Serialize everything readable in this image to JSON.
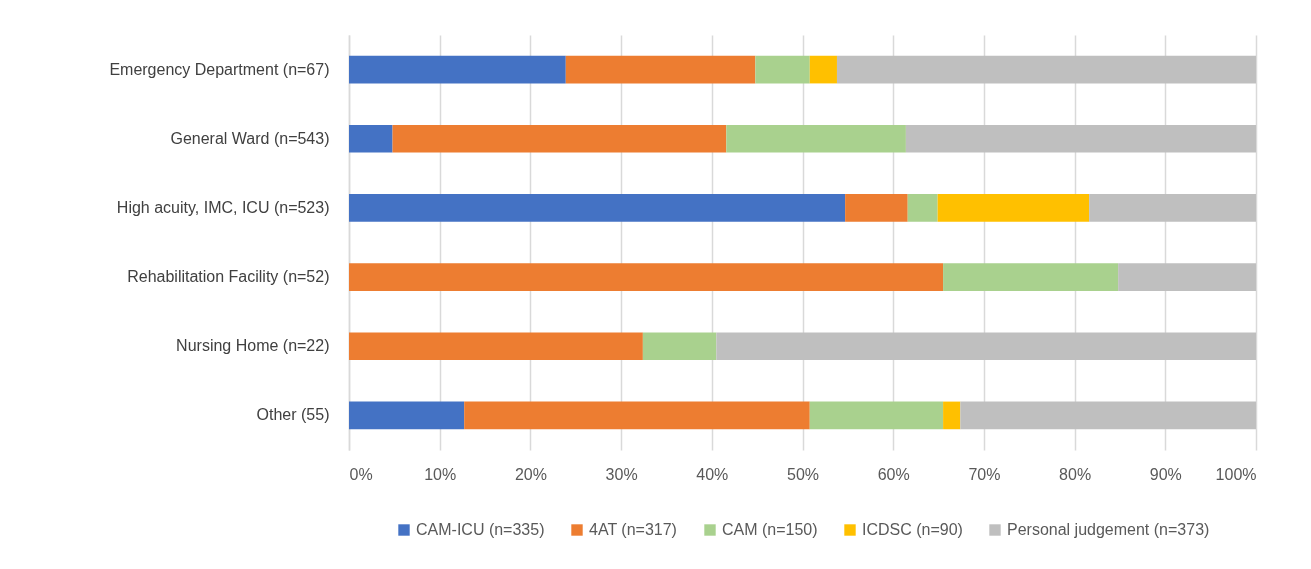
{
  "chart_data": {
    "type": "bar",
    "orientation": "horizontal",
    "stacked": true,
    "legend": "bottom",
    "grid": "x",
    "categories": [
      "Emergency Department (n=67)",
      "General Ward (n=543)",
      "High acuity, IMC, ICU (n=523)",
      "Rehabilitation Facility (n=52)",
      "Nursing Home (n=22)",
      "Other (55)"
    ],
    "xlim": [
      0,
      100
    ],
    "xticks": [
      {
        "value": 0,
        "label": "0%"
      },
      {
        "value": 10,
        "label": "10%"
      },
      {
        "value": 20,
        "label": "20%"
      },
      {
        "value": 30,
        "label": "30%"
      },
      {
        "value": 40,
        "label": "40%"
      },
      {
        "value": 50,
        "label": "50%"
      },
      {
        "value": 60,
        "label": "60%"
      },
      {
        "value": 70,
        "label": "70%"
      },
      {
        "value": 80,
        "label": "80%"
      },
      {
        "value": 90,
        "label": "90%"
      },
      {
        "value": 100,
        "label": "100%"
      }
    ],
    "series": [
      {
        "name": "CAM-ICU (n=335)",
        "color": "#4472c4",
        "values": [
          23.9,
          4.8,
          54.7,
          0,
          0,
          12.7
        ]
      },
      {
        "name": "4AT (n=317)",
        "color": "#ed7d31",
        "values": [
          20.9,
          36.8,
          6.9,
          65.5,
          32.4,
          38.1
        ]
      },
      {
        "name": "CAM (n=150)",
        "color": "#a9d18e",
        "values": [
          6.0,
          19.8,
          3.3,
          19.3,
          8.1,
          14.7
        ]
      },
      {
        "name": "ICDSC (n=90)",
        "color": "#ffc000",
        "values": [
          3.0,
          0,
          16.7,
          0,
          0,
          1.9
        ]
      },
      {
        "name": "Personal judgement (n=373)",
        "color": "#bfbfbf",
        "values": [
          46.2,
          38.6,
          18.4,
          15.2,
          59.5,
          32.6
        ]
      }
    ]
  }
}
